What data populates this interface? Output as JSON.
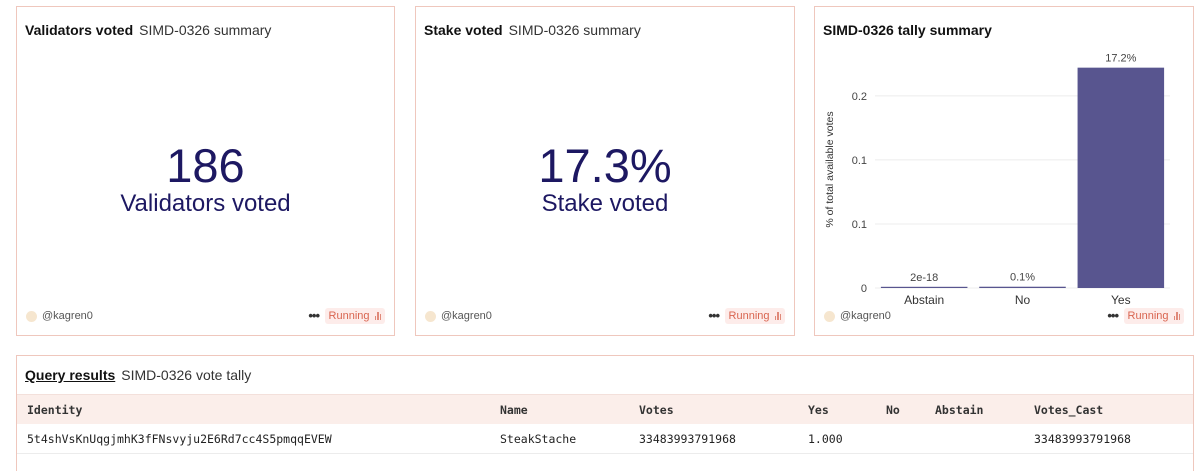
{
  "cards": {
    "validators": {
      "title": "Validators voted",
      "subtitle": "SIMD-0326 summary",
      "value": "186",
      "value_label": "Validators voted",
      "author": "@kagren0",
      "status": "Running"
    },
    "stake": {
      "title": "Stake voted",
      "subtitle": "SIMD-0326 summary",
      "value": "17.3%",
      "value_label": "Stake voted",
      "author": "@kagren0",
      "status": "Running"
    },
    "tally": {
      "title": "SIMD-0326 tally summary",
      "author": "@kagren0",
      "status": "Running"
    }
  },
  "chart_data": {
    "type": "bar",
    "title": "SIMD-0326 tally summary",
    "categories": [
      "Abstain",
      "No",
      "Yes"
    ],
    "values": [
      2e-18,
      0.001,
      0.172
    ],
    "data_labels": [
      "2e-18",
      "0.1%",
      "17.2%"
    ],
    "ylabel": "% of total available votes",
    "xlabel": "",
    "yticks": [
      "0",
      "0.1",
      "0.1",
      "0.2"
    ],
    "ylim": [
      0,
      0.185
    ],
    "bar_color": "#58558f",
    "grid": true
  },
  "results": {
    "title": "Query results",
    "subtitle": "SIMD-0326 vote tally",
    "columns": [
      "Identity",
      "Name",
      "Votes",
      "Yes",
      "No",
      "Abstain",
      "Votes_Cast"
    ],
    "rows": [
      [
        "5t4shVsKnUqgjmhK3fFNsvyju2E6Rd7cc4S5pmqqEVEW",
        "SteakStache",
        "33483993791968",
        "1.000",
        "",
        "",
        "33483993791968"
      ]
    ]
  },
  "colors": {
    "accent_border": "#efc7bd",
    "counter_text": "#1d1862",
    "running_bg": "#fdecea",
    "running_text": "#d96550"
  },
  "icons": {
    "avatar": "avatar-icon",
    "more": "more-dots-icon",
    "running": "signal-bars-icon"
  }
}
